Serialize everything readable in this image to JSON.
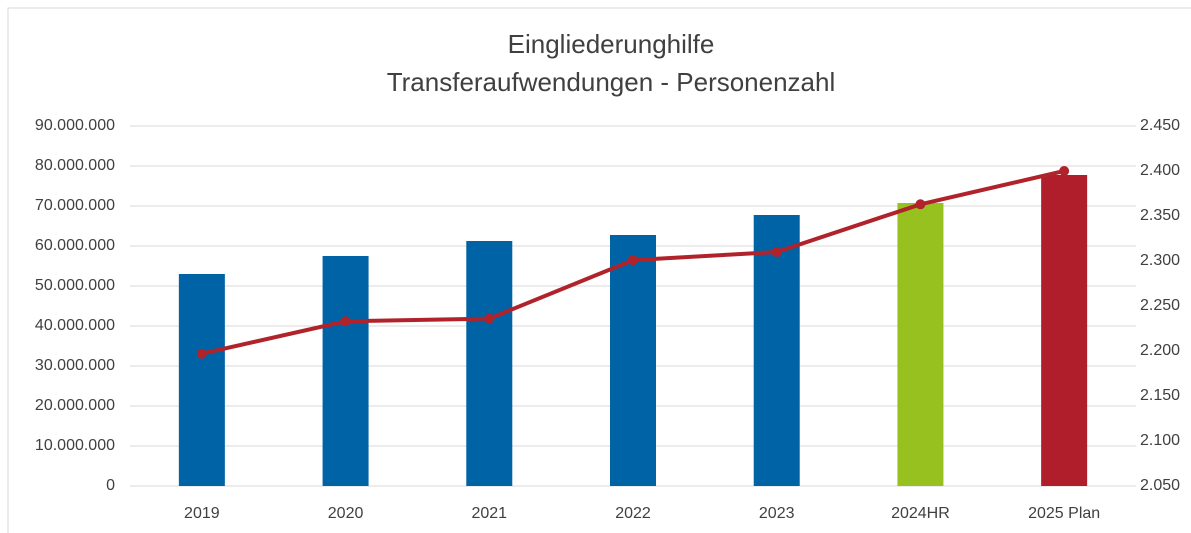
{
  "chart_data": {
    "type": "bar",
    "title": [
      "Eingliederunghilfe",
      "Transferaufwendungen - Personenzahl"
    ],
    "categories": [
      "2019",
      "2020",
      "2021",
      "2022",
      "2023",
      "2024HR",
      "2025 Plan"
    ],
    "series": [
      {
        "type": "bar",
        "values": [
          53000000,
          57500000,
          61250000,
          62750000,
          67750000,
          70750000,
          77750000
        ],
        "colors": [
          "#0063a6",
          "#0063a6",
          "#0063a6",
          "#0063a6",
          "#0063a6",
          "#97c11f",
          "#b01e2b"
        ]
      },
      {
        "type": "line",
        "axis": "y2",
        "color": "#b0232b",
        "values": [
          2197,
          2233,
          2236,
          2301,
          2310,
          2363,
          2400
        ]
      }
    ],
    "ylim": [
      0,
      90000000
    ],
    "yticks": [
      0,
      {
        "value": 10000000,
        "label": "10.000.000"
      },
      {
        "value": 20000000,
        "label": "20.000.000"
      },
      {
        "value": 30000000,
        "label": "30.000.000"
      },
      {
        "value": 40000000,
        "label": "40.000.000"
      },
      {
        "value": 50000000,
        "label": "50.000.000"
      },
      {
        "value": 60000000,
        "label": "60.000.000"
      },
      {
        "value": 70000000,
        "label": "70.000.000"
      },
      {
        "value": 80000000,
        "label": "80.000.000"
      },
      {
        "value": 90000000,
        "label": "90.000.000"
      }
    ],
    "y2lim": [
      2050,
      2450
    ],
    "y2ticks": [
      {
        "value": 2050,
        "label": "2.050"
      },
      {
        "value": 2100,
        "label": "2.100"
      },
      {
        "value": 2150,
        "label": "2.150"
      },
      {
        "value": 2200,
        "label": "2.200"
      },
      {
        "value": 2250,
        "label": "2.250"
      },
      {
        "value": 2300,
        "label": "2.300"
      },
      {
        "value": 2350,
        "label": "2.350"
      },
      {
        "value": 2400,
        "label": "2.400"
      },
      {
        "value": 2450,
        "label": "2.450"
      }
    ],
    "grid": true
  }
}
